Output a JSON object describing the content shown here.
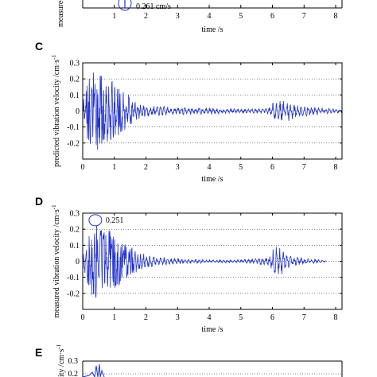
{
  "colors": {
    "signal": "#2233cc",
    "grid": "#000000",
    "axis": "#000000"
  },
  "panel_labels": {
    "c": "C",
    "d": "D",
    "e": "E"
  },
  "fragments": {
    "top_annotation": "0.261 cm/s",
    "top_xlabel": "time /s",
    "top_ylabel": "measured",
    "e_ylabel": "ity /cm·s",
    "e_ytick_top": "0.3",
    "e_ytick_second": "0.2"
  },
  "top_x_ticks": [
    "1",
    "2",
    "3",
    "4",
    "5",
    "6",
    "7",
    "8"
  ],
  "chart_data": [
    {
      "panel": "C",
      "type": "line",
      "xlabel": "time /s",
      "ylabel": "predicted vibration velocity /cm·s",
      "ylabel_exponent": "-1",
      "xlim": [
        0,
        8.2
      ],
      "ylim": [
        -0.3,
        0.3
      ],
      "x_ticks": [
        0,
        1,
        2,
        3,
        4,
        5,
        6,
        7,
        8
      ],
      "y_ticks": [
        -0.3,
        -0.2,
        -0.1,
        0,
        0.1,
        0.2,
        0.3
      ],
      "y_tick_labels": [
        "",
        "-0.2",
        "-0.1",
        "0",
        "0.1",
        "0.2",
        "0.3"
      ],
      "grid": "horizontal dotted",
      "envelope": {
        "t": [
          0,
          0.1,
          0.2,
          0.3,
          0.4,
          0.5,
          0.7,
          1.0,
          1.3,
          1.6,
          2.0,
          2.5,
          3.0,
          4.0,
          5.0,
          5.8,
          6.0,
          6.3,
          6.6,
          6.9,
          7.2,
          7.6,
          8.0,
          8.2
        ],
        "amplitude": [
          0.04,
          0.15,
          0.2,
          0.24,
          0.26,
          0.25,
          0.2,
          0.18,
          0.13,
          0.07,
          0.04,
          0.03,
          0.025,
          0.02,
          0.015,
          0.015,
          0.05,
          0.07,
          0.06,
          0.04,
          0.03,
          0.02,
          0.015,
          0.01
        ]
      }
    },
    {
      "panel": "D",
      "type": "line",
      "xlabel": "time /s",
      "ylabel": "measured vibration velocity /cm·s",
      "ylabel_exponent": "-1",
      "xlim": [
        0,
        8.2
      ],
      "ylim": [
        -0.3,
        0.3
      ],
      "x_ticks": [
        0,
        1,
        2,
        3,
        4,
        5,
        6,
        7,
        8
      ],
      "y_ticks": [
        -0.3,
        -0.2,
        -0.1,
        0,
        0.1,
        0.2,
        0.3
      ],
      "y_tick_labels": [
        "",
        "-0.2",
        "-0.1",
        "0",
        "0.1",
        "0.2",
        "0.3"
      ],
      "grid": "horizontal dotted",
      "annotation": {
        "text": "0.251",
        "x": 0.4,
        "y": 0.251
      },
      "signal_end": 7.7,
      "envelope": {
        "t": [
          0,
          0.1,
          0.3,
          0.4,
          0.6,
          0.8,
          1.0,
          1.3,
          1.6,
          2.0,
          2.4,
          3.0,
          4.0,
          5.0,
          5.9,
          6.1,
          6.2,
          6.5,
          7.0,
          7.7
        ],
        "amplitude": [
          0.03,
          0.12,
          0.22,
          0.251,
          0.21,
          0.2,
          0.18,
          0.12,
          0.08,
          0.05,
          0.03,
          0.02,
          0.01,
          0.01,
          0.03,
          0.11,
          0.1,
          0.05,
          0.02,
          0.005
        ]
      }
    }
  ]
}
